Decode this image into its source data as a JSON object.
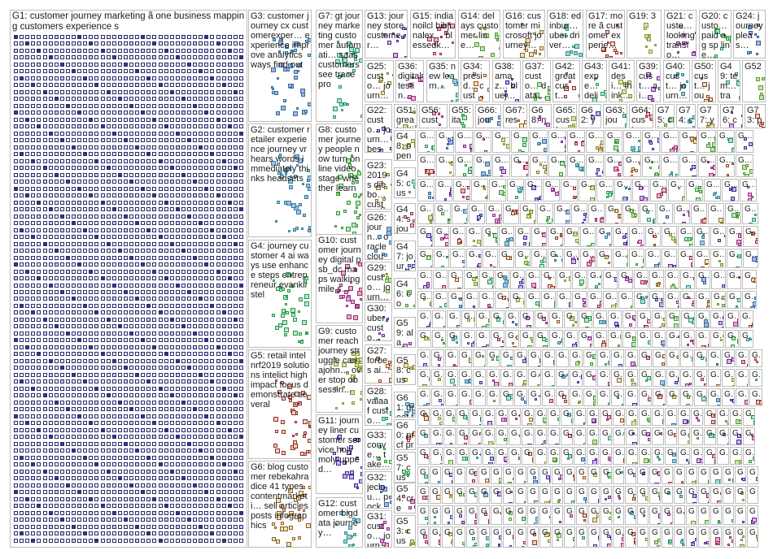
{
  "panels": [
    {
      "id": "G1",
      "text": "G1: customer journey marketing ã one business mapping customers experience s",
      "hue": 220,
      "dense": true
    },
    {
      "id": "G3",
      "text": "G3: customer journey cx customerexper… experience improve analytics ways find out",
      "hue": 200
    },
    {
      "id": "G7",
      "text": "G7: gt journey marketing customer automati… saas customers see trace pro",
      "hue": 150
    },
    {
      "id": "G13",
      "text": "G13: journey store customer…",
      "hue": 260
    },
    {
      "id": "G15",
      "text": "G15: indianoilcl bibjinalex… blessedk…",
      "hue": 330
    },
    {
      "id": "G14",
      "text": "G14: delays customer line…",
      "hue": 90
    },
    {
      "id": "G16",
      "text": "G16: customer microsoft journey…",
      "hue": 30
    },
    {
      "id": "G18",
      "text": "G18: edinbur… uber driver…",
      "hue": 170
    },
    {
      "id": "G17",
      "text": "G17: more ã customer experie…",
      "hue": 0
    },
    {
      "id": "G19",
      "text": "G19: 3",
      "hue": 60
    },
    {
      "id": "G21",
      "text": "G21: custo… looking transfo…",
      "hue": 280
    },
    {
      "id": "G20",
      "text": "G20: custo… paid ag sp line…",
      "hue": 120
    },
    {
      "id": "G24",
      "text": "G24: journey pleas…",
      "hue": 210
    },
    {
      "id": "G25",
      "text": "G25: custo… journ… mapp…",
      "hue": 40
    },
    {
      "id": "G36",
      "text": "G36: digital testin…",
      "hue": 300
    },
    {
      "id": "G35",
      "text": "G35: new learn…",
      "hue": 180
    },
    {
      "id": "G34",
      "text": "G34: presid… custo…",
      "hue": 20
    },
    {
      "id": "G38",
      "text": "G38: amaz… bluej…",
      "hue": 240
    },
    {
      "id": "G37",
      "text": "G37: custo… data…",
      "hue": 100
    },
    {
      "id": "G42",
      "text": "G42: great cust…",
      "hue": 350
    },
    {
      "id": "G43",
      "text": "G43: expe… deliv…",
      "hue": 140
    },
    {
      "id": "G41",
      "text": "G41: desi… think…",
      "hue": 50
    },
    {
      "id": "G39",
      "text": "G39: cust… ai…",
      "hue": 270
    },
    {
      "id": "G40",
      "text": "G40: cust… journ…",
      "hue": 190
    },
    {
      "id": "G50",
      "text": "G50: cust… jour…",
      "hue": 10
    },
    {
      "id": "G49",
      "text": "G49: tem… tran…",
      "hue": 160
    },
    {
      "id": "G52",
      "text": "G52",
      "hue": 80
    },
    {
      "id": "G2",
      "text": "G2: customer retailer experience journey vr hears words immediately thinks headsets",
      "hue": 190
    },
    {
      "id": "G8",
      "text": "G8: customer journey people now turn online video stage whether learn",
      "hue": 110
    },
    {
      "id": "G22",
      "text": "G22: custo… journ… best…",
      "hue": 250
    },
    {
      "id": "G51",
      "text": "G51: great artic…",
      "hue": 70
    },
    {
      "id": "G56",
      "text": "G56: custo…",
      "hue": 320
    },
    {
      "id": "G55",
      "text": "G55: ita s…",
      "hue": 130
    },
    {
      "id": "G66",
      "text": "G66: jour…",
      "hue": 200
    },
    {
      "id": "G67",
      "text": "G67: reso…",
      "hue": 20
    },
    {
      "id": "G68",
      "text": "G68: new…",
      "hue": 290
    },
    {
      "id": "G65",
      "text": "G65: cust…",
      "hue": 60
    },
    {
      "id": "G62",
      "text": "G62: yout…",
      "hue": 230
    },
    {
      "id": "G63",
      "text": "G63: jour…",
      "hue": 150
    },
    {
      "id": "G64",
      "text": "G64: cust…",
      "hue": 340
    },
    {
      "id": "G75",
      "text": "G75: cios",
      "hue": 100
    },
    {
      "id": "G74",
      "text": "G74: cus…",
      "hue": 180
    },
    {
      "id": "G77",
      "text": "G77: you…",
      "hue": 40
    },
    {
      "id": "G76",
      "text": "G76: cus…",
      "hue": 260
    },
    {
      "id": "G73",
      "text": "G73: pay",
      "hue": 0
    },
    {
      "id": "G4",
      "text": "G4: journey customer 4 ai ways use enhance steps entrepreneur evankirstel",
      "hue": 130
    },
    {
      "id": "G10",
      "text": "G10: customer journey digital psb_dc maps walking mile s…",
      "hue": 310
    },
    {
      "id": "G23",
      "text": "G23: 2019 s diebo… custo…",
      "hue": 35
    },
    {
      "id": "G26",
      "text": "G26: journ… oracle cloud…",
      "hue": 195
    },
    {
      "id": "G29",
      "text": "G29: custo… journ…",
      "hue": 85
    },
    {
      "id": "G30",
      "text": "G30: uber custo…",
      "hue": 275
    },
    {
      "id": "G27",
      "text": "G27: forbes ai…",
      "hue": 15
    },
    {
      "id": "G28",
      "text": "G28: valaaf custo…",
      "hue": 165
    },
    {
      "id": "G9",
      "text": "G9: customer reach journey struggle carlajohn… over stop obsessin…",
      "hue": 55
    },
    {
      "id": "G5",
      "text": "G5: retail intel nrf2019 solutions intelict high impact focus demonstrate several",
      "hue": 355
    },
    {
      "id": "G11",
      "text": "G11: journey liner customer service holy moly upped…",
      "hue": 245
    },
    {
      "id": "G33",
      "text": "G33: conve… take…",
      "hue": 115
    },
    {
      "id": "G32",
      "text": "G32: jeclou… pocke… trend…",
      "hue": 205
    },
    {
      "id": "G6",
      "text": "G6: blog customer rebekahradice 41 types contentmarketi… sell articles posts infographics",
      "hue": 25
    },
    {
      "id": "G12",
      "text": "G12: customer bigdata journey…",
      "hue": 175
    },
    {
      "id": "G31",
      "text": "G31: custo… journ…",
      "hue": 295
    },
    {
      "id": "G48",
      "text": "G48: open sour…",
      "hue": 65
    },
    {
      "id": "G45",
      "text": "G45: cust… sour…",
      "hue": 145
    },
    {
      "id": "G44",
      "text": "G44: s jour…",
      "hue": 335
    },
    {
      "id": "G47",
      "text": "G47: jour… rics",
      "hue": 225
    },
    {
      "id": "G46",
      "text": "G46: com… suni…",
      "hue": 95
    },
    {
      "id": "G59",
      "text": "G59: alan… tads…",
      "hue": 285
    },
    {
      "id": "G58",
      "text": "G58: cust… jour…",
      "hue": 45
    },
    {
      "id": "G61",
      "text": "G61: great tool…",
      "hue": 185
    },
    {
      "id": "G60",
      "text": "G60: prcf pro…",
      "hue": 5
    },
    {
      "id": "G57",
      "text": "G57: cust… cust…",
      "hue": 125
    },
    {
      "id": "G54",
      "text": "G54: cres… very…",
      "hue": 315
    },
    {
      "id": "G53",
      "text": "G53: cust… jour…",
      "hue": 75
    }
  ],
  "small_cell_label": "G…"
}
